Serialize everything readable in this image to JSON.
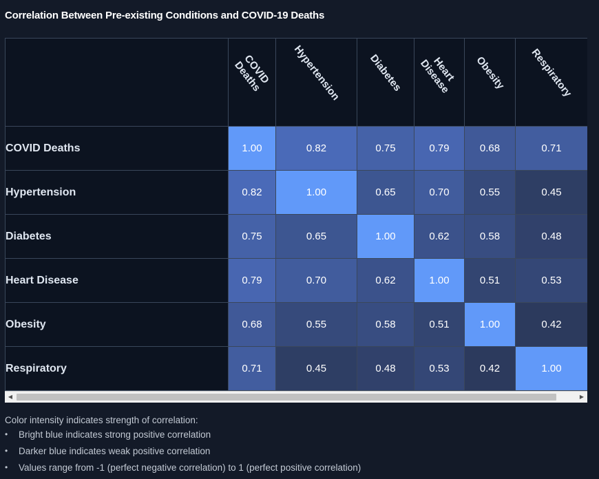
{
  "page": {
    "title": "Correlation Between Pre-existing Conditions and COVID-19 Deaths"
  },
  "chart_data": {
    "type": "heatmap",
    "title": "Correlation Between Pre-existing Conditions and COVID-19 Deaths",
    "columns": [
      "COVID\nDeaths",
      "Hypertension",
      "Diabetes",
      "Heart\nDisease",
      "Obesity",
      "Respiratory"
    ],
    "rows": [
      "COVID Deaths",
      "Hypertension",
      "Diabetes",
      "Heart Disease",
      "Obesity",
      "Respiratory"
    ],
    "values": [
      [
        "1.00",
        "0.82",
        "0.75",
        "0.79",
        "0.68",
        "0.71"
      ],
      [
        "0.82",
        "1.00",
        "0.65",
        "0.70",
        "0.55",
        "0.45"
      ],
      [
        "0.75",
        "0.65",
        "1.00",
        "0.62",
        "0.58",
        "0.48"
      ],
      [
        "0.79",
        "0.70",
        "0.62",
        "1.00",
        "0.51",
        "0.53"
      ],
      [
        "0.68",
        "0.55",
        "0.58",
        "0.51",
        "1.00",
        "0.42"
      ],
      [
        "0.71",
        "0.45",
        "0.48",
        "0.53",
        "0.42",
        "1.00"
      ]
    ],
    "value_range": [
      -1,
      1
    ],
    "colors": {
      "strong": "#6199f9",
      "weak": "#2c3a5d"
    }
  },
  "notes": {
    "heading": "Color intensity indicates strength of correlation:",
    "items": [
      "Bright blue indicates strong positive correlation",
      "Darker blue indicates weak positive correlation",
      "Values range from -1 (perfect negative correlation) to 1 (perfect positive correlation)"
    ]
  }
}
